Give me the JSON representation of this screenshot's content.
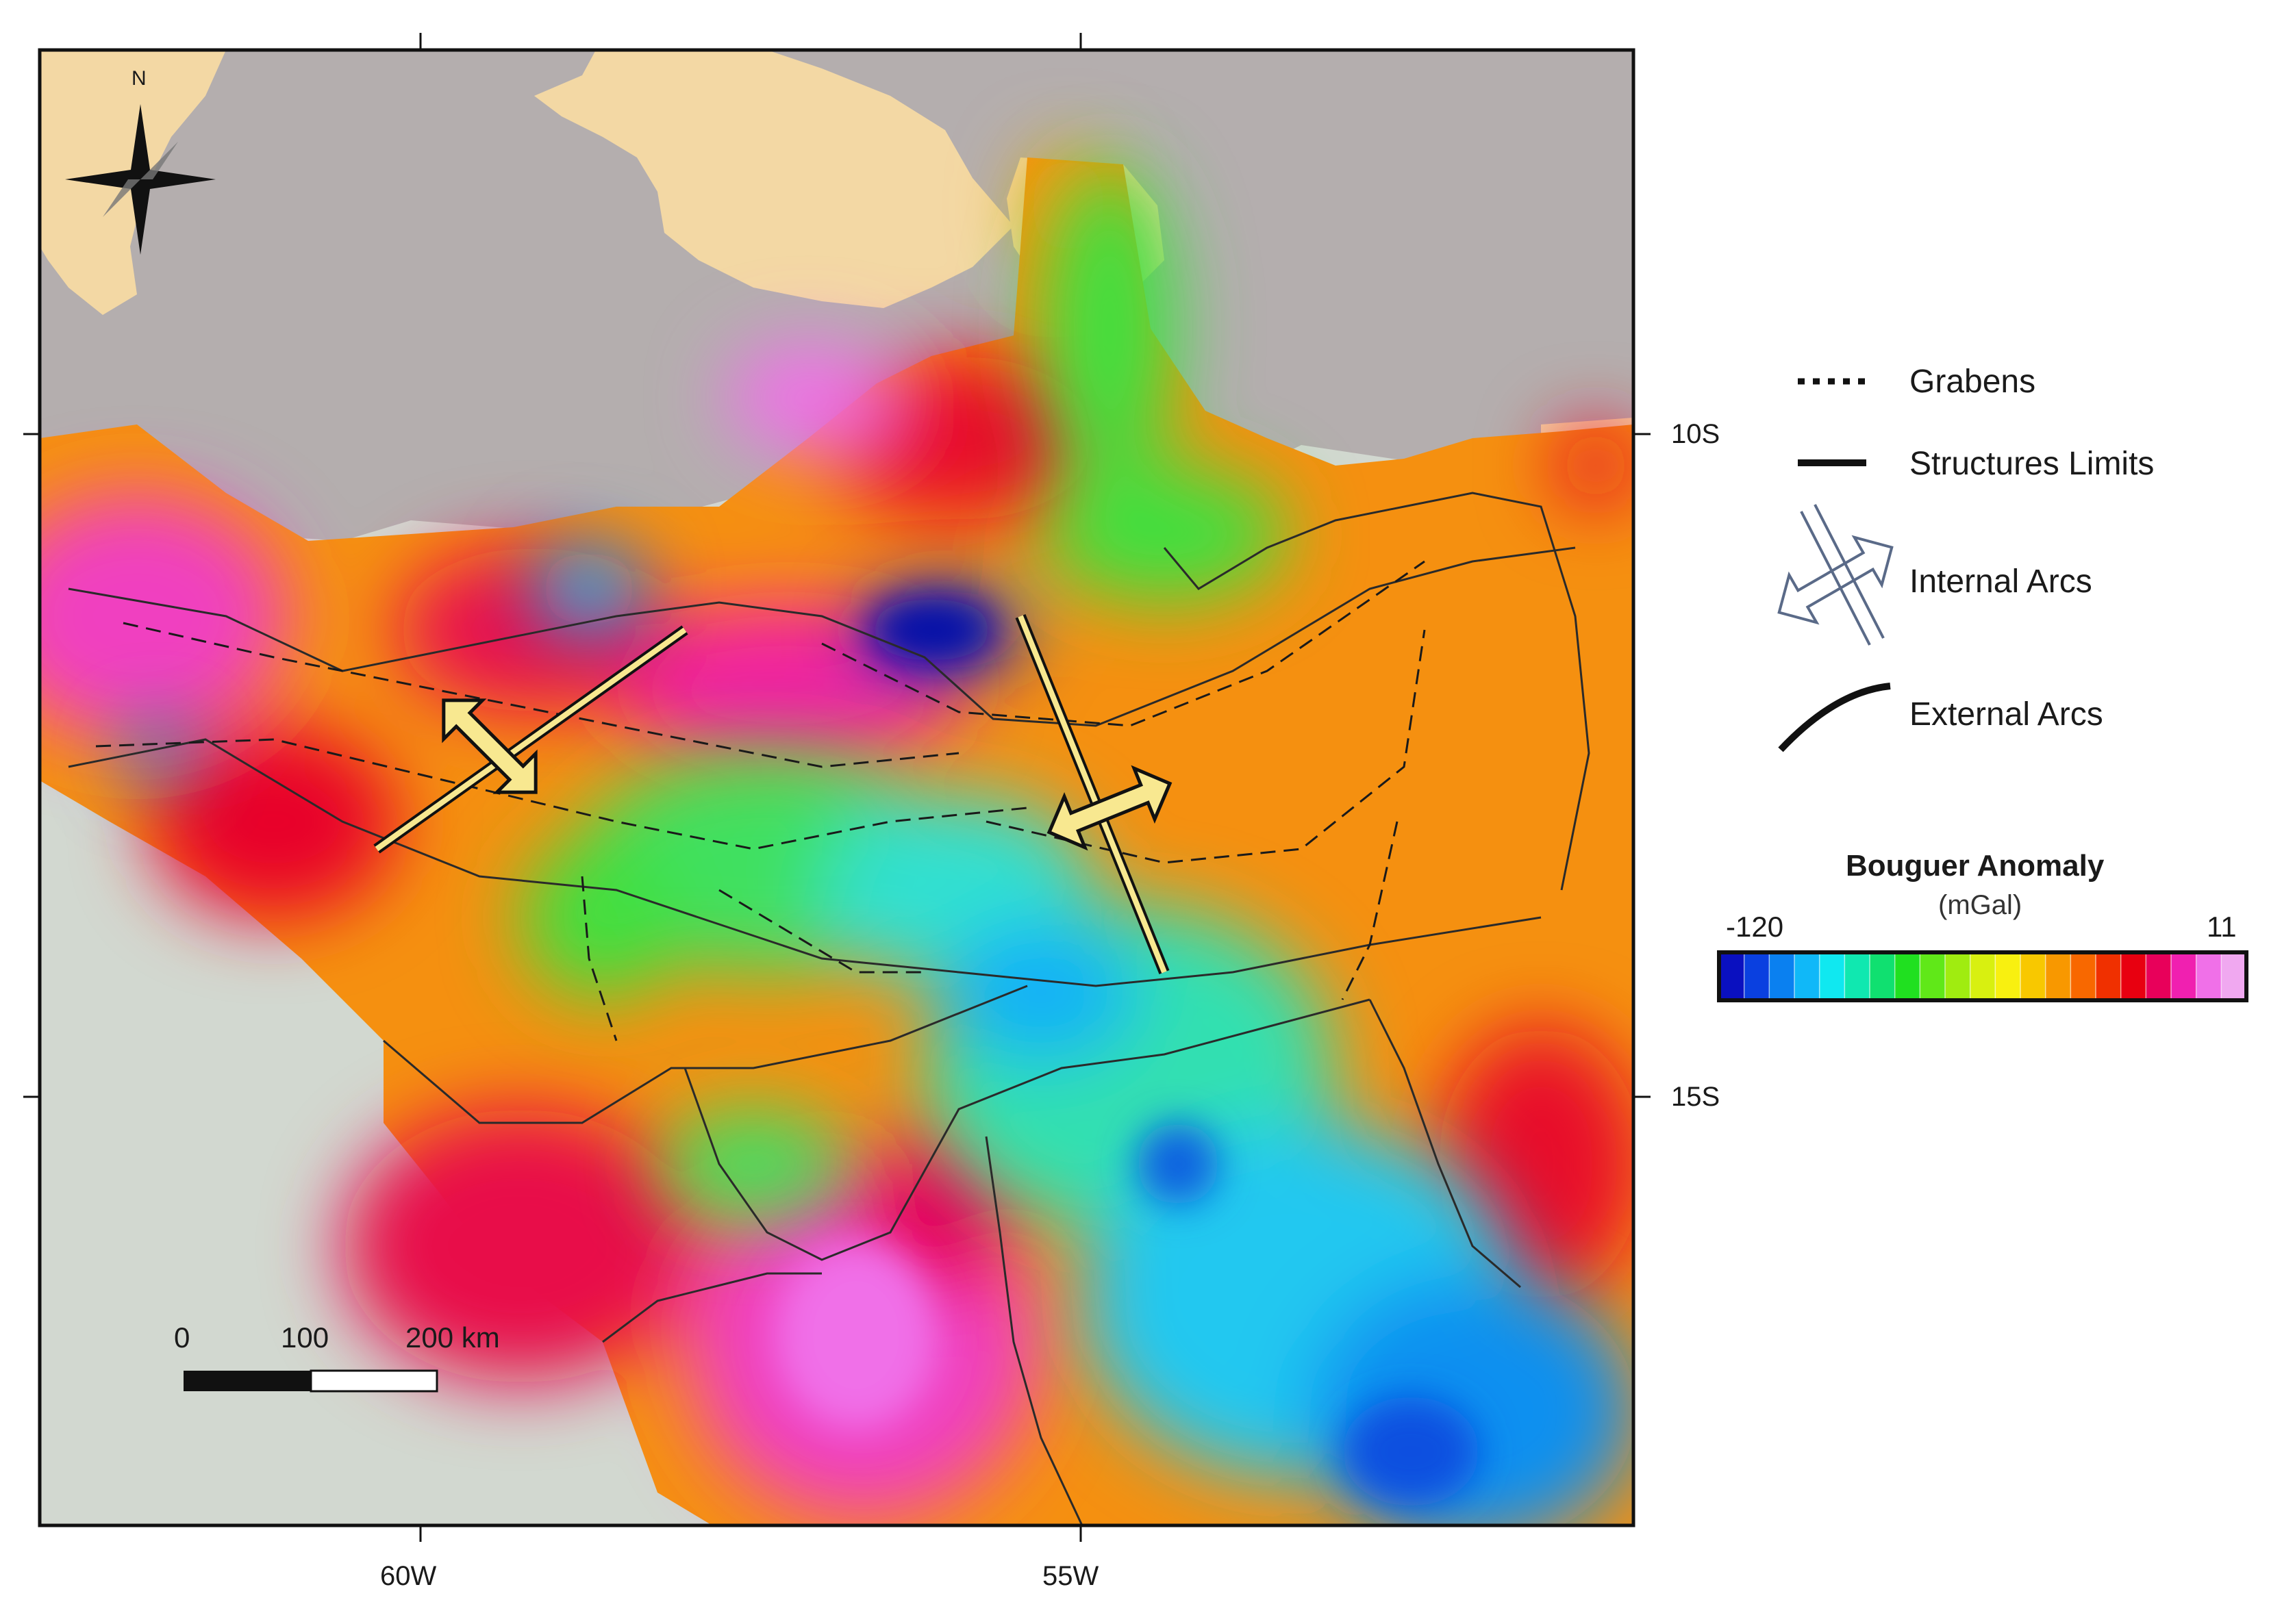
{
  "axes": {
    "x_ticks": [
      "60W",
      "55W"
    ],
    "y_ticks": [
      "10S",
      "15S"
    ]
  },
  "north_arrow": {
    "label": "N"
  },
  "scale_bar": {
    "labels": [
      "0",
      "100",
      "200 km"
    ]
  },
  "legend": {
    "grabens": "Grabens",
    "structures_limits": "Structures Limits",
    "internal_arcs": "Internal Arcs",
    "external_arcs": "External Arcs"
  },
  "colorbar": {
    "title": "Bouguer Anomaly",
    "unit": "(mGal)",
    "min": "-120",
    "max": "11",
    "colors": [
      "#0a10c0",
      "#0a40e0",
      "#0a80f0",
      "#10b8f8",
      "#10e8f0",
      "#10e8b0",
      "#10e070",
      "#20e020",
      "#60e818",
      "#a0ec10",
      "#d8f010",
      "#f8f010",
      "#f8c800",
      "#f89800",
      "#f86800",
      "#f03000",
      "#e80010",
      "#e8005a",
      "#f020b0",
      "#f070e8",
      "#f0a8f0"
    ]
  },
  "colors": {
    "land": "#f3d8a4",
    "water": "#b4aeae",
    "terrain": "#d2d8d0",
    "frame": "#111111"
  }
}
